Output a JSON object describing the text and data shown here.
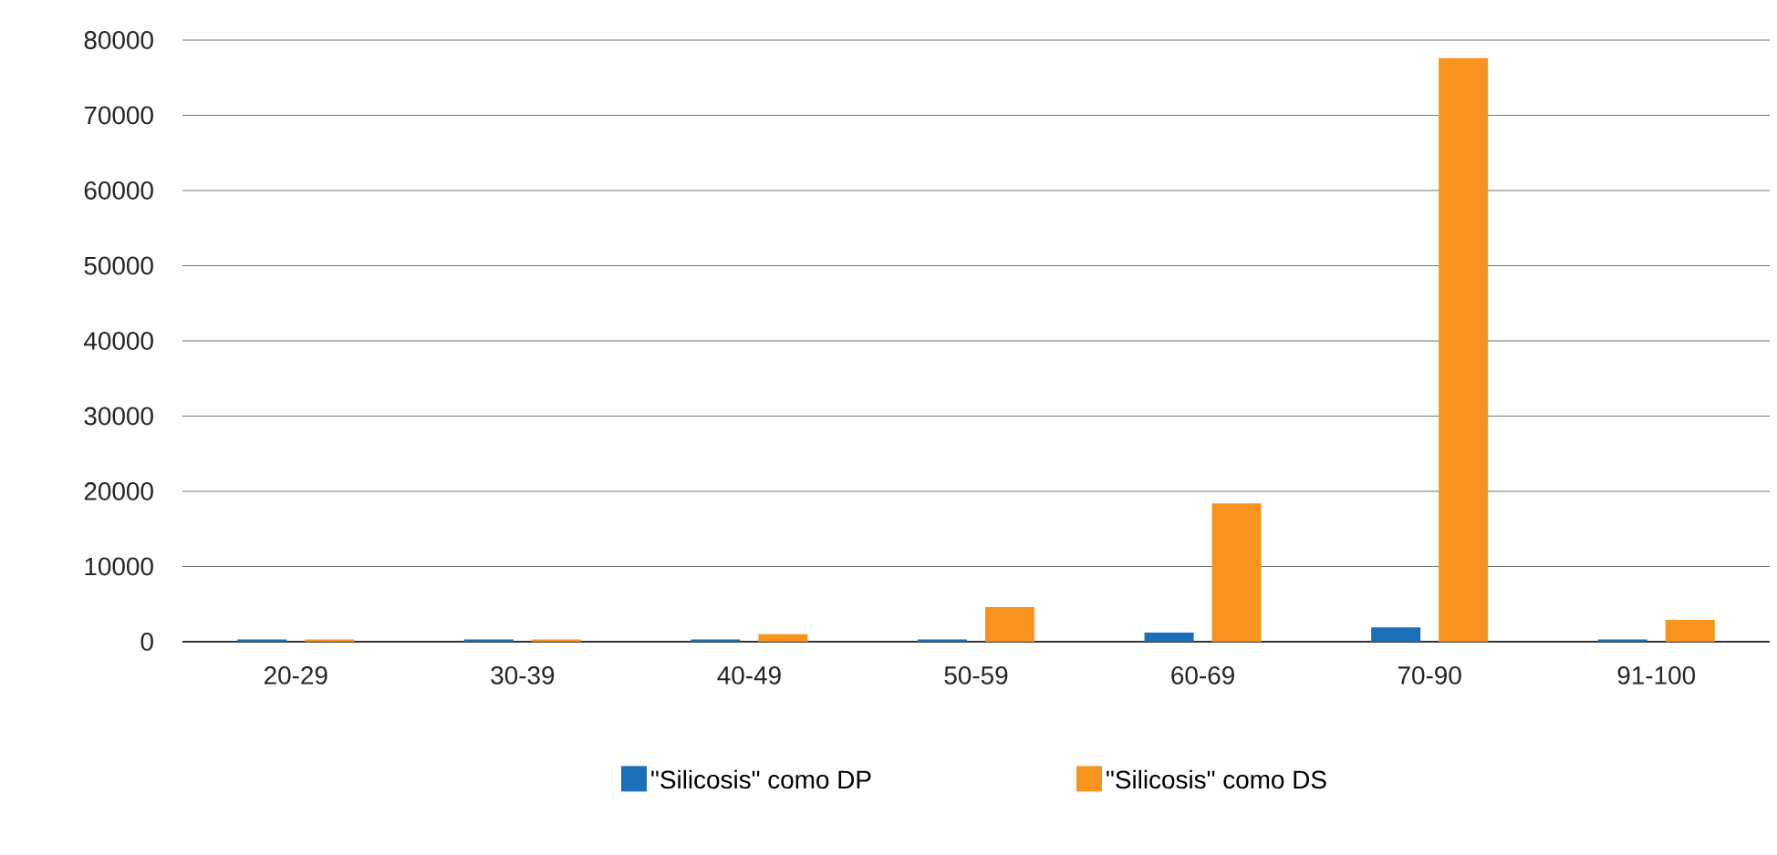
{
  "chart_data": {
    "type": "bar",
    "categories": [
      "20-29",
      "30-39",
      "40-49",
      "50-59",
      "60-69",
      "70-90",
      "91-100"
    ],
    "series": [
      {
        "name": "\"Silicosis\" como DP",
        "color": "#1a6fb8",
        "values": [
          300,
          300,
          300,
          300,
          1200,
          1900,
          300
        ]
      },
      {
        "name": "\"Silicosis\" como DS",
        "color": "#f7931e",
        "values": [
          300,
          300,
          1000,
          4600,
          18400,
          77600,
          2900
        ]
      }
    ],
    "ylim": [
      0,
      80000
    ],
    "yticks": [
      0,
      10000,
      20000,
      30000,
      40000,
      50000,
      60000,
      70000,
      80000
    ],
    "grid": "y",
    "legend": "bottom"
  }
}
